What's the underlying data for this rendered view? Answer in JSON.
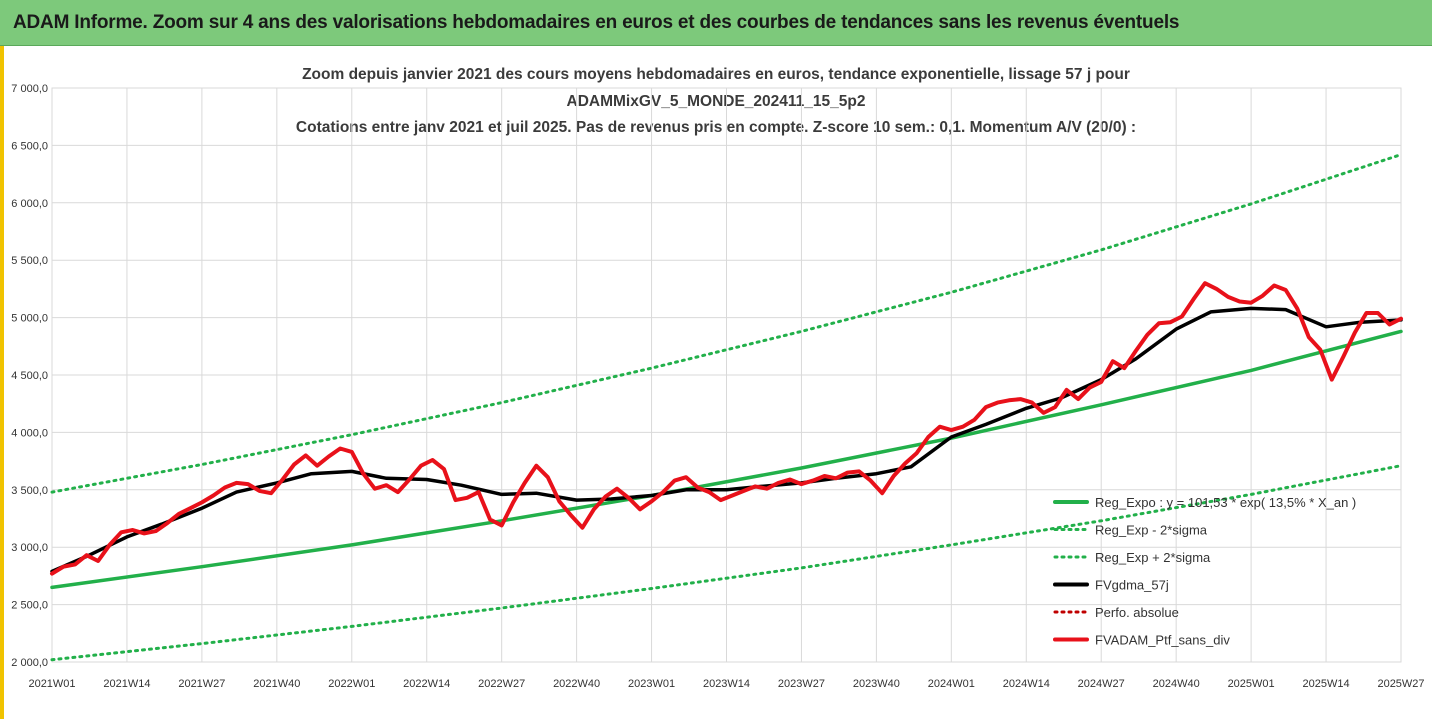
{
  "banner": {
    "title": "ADAM Informe. Zoom sur 4 ans des valorisations hebdomadaires en euros et des courbes de tendances sans les revenus éventuels"
  },
  "chart_data": {
    "type": "line",
    "title_lines": [
      "Zoom depuis janvier 2021 des cours moyens hebdomadaires  en euros, tendance exponentielle, lissage 57 j pour",
      "ADAMMixGV_5_MONDE_202411_15_5p2",
      "Cotations entre janv 2021 et juil 2025. Pas de revenus pris en compte. Z-score 10 sem.: 0,1. Momentum A/V (20/0) :"
    ],
    "ylim": [
      2000,
      7000
    ],
    "y_ticks": [
      "2 000,0",
      "2 500,0",
      "3 000,0",
      "3 500,0",
      "4 000,0",
      "4 500,0",
      "5 000,0",
      "5 500,0",
      "6 000,0",
      "6 500,0",
      "7 000,0"
    ],
    "x_ticks": [
      "2021W01",
      "2021W14",
      "2021W27",
      "2021W40",
      "2022W01",
      "2022W14",
      "2022W27",
      "2022W40",
      "2023W01",
      "2023W14",
      "2023W27",
      "2023W40",
      "2024W01",
      "2024W14",
      "2024W27",
      "2024W40",
      "2025W01",
      "2025W14",
      "2025W27"
    ],
    "grid": true,
    "legend_position": "bottom-right",
    "series": [
      {
        "name": "Reg_Expo : y = 101,53 * exp( 13,5% *  X_an )",
        "color": "#22b04a",
        "style": "solid",
        "points": [
          [
            "2021W01",
            2650
          ],
          [
            "2021W27",
            2830
          ],
          [
            "2022W01",
            3020
          ],
          [
            "2022W27",
            3230
          ],
          [
            "2023W01",
            3450
          ],
          [
            "2023W27",
            3690
          ],
          [
            "2024W01",
            3950
          ],
          [
            "2024W27",
            4240
          ],
          [
            "2025W01",
            4540
          ],
          [
            "2025W27",
            4880
          ]
        ]
      },
      {
        "name": "Reg_Exp - 2*sigma",
        "color": "#22b04a",
        "style": "dotted",
        "points": [
          [
            "2021W01",
            2020
          ],
          [
            "2021W27",
            2160
          ],
          [
            "2022W01",
            2310
          ],
          [
            "2022W27",
            2470
          ],
          [
            "2023W01",
            2640
          ],
          [
            "2023W27",
            2820
          ],
          [
            "2024W01",
            3020
          ],
          [
            "2024W27",
            3230
          ],
          [
            "2025W01",
            3460
          ],
          [
            "2025W27",
            3710
          ]
        ]
      },
      {
        "name": "Reg_Exp + 2*sigma",
        "color": "#22b04a",
        "style": "dotted",
        "points": [
          [
            "2021W01",
            3480
          ],
          [
            "2021W27",
            3720
          ],
          [
            "2022W01",
            3980
          ],
          [
            "2022W27",
            4260
          ],
          [
            "2023W01",
            4560
          ],
          [
            "2023W27",
            4880
          ],
          [
            "2024W01",
            5220
          ],
          [
            "2024W27",
            5590
          ],
          [
            "2025W01",
            5990
          ],
          [
            "2025W27",
            6420
          ]
        ]
      },
      {
        "name": "FVgdma_57j",
        "color": "#000000",
        "style": "solid",
        "points": [
          [
            "2021W01",
            2790
          ],
          [
            "2021W07",
            2920
          ],
          [
            "2021W14",
            3090
          ],
          [
            "2021W20",
            3200
          ],
          [
            "2021W27",
            3340
          ],
          [
            "2021W33",
            3480
          ],
          [
            "2021W40",
            3560
          ],
          [
            "2021W46",
            3640
          ],
          [
            "2022W01",
            3660
          ],
          [
            "2022W07",
            3600
          ],
          [
            "2022W14",
            3590
          ],
          [
            "2022W20",
            3540
          ],
          [
            "2022W27",
            3460
          ],
          [
            "2022W33",
            3470
          ],
          [
            "2022W40",
            3410
          ],
          [
            "2022W46",
            3420
          ],
          [
            "2023W01",
            3450
          ],
          [
            "2023W07",
            3500
          ],
          [
            "2023W14",
            3500
          ],
          [
            "2023W20",
            3530
          ],
          [
            "2023W27",
            3560
          ],
          [
            "2023W33",
            3600
          ],
          [
            "2023W40",
            3640
          ],
          [
            "2023W46",
            3700
          ],
          [
            "2024W01",
            3960
          ],
          [
            "2024W07",
            4070
          ],
          [
            "2024W14",
            4210
          ],
          [
            "2024W20",
            4300
          ],
          [
            "2024W27",
            4460
          ],
          [
            "2024W33",
            4640
          ],
          [
            "2024W40",
            4900
          ],
          [
            "2024W46",
            5050
          ],
          [
            "2025W01",
            5080
          ],
          [
            "2025W07",
            5070
          ],
          [
            "2025W14",
            4920
          ],
          [
            "2025W20",
            4960
          ],
          [
            "2025W27",
            4980
          ]
        ]
      },
      {
        "name": "Perfo. absolue",
        "color": "#c00000",
        "style": "dotted",
        "points": []
      },
      {
        "name": "FVADAM_Ptf_sans_div",
        "color": "#e8111a",
        "style": "solid",
        "points": [
          [
            "2021W01",
            2770
          ],
          [
            "2021W03",
            2830
          ],
          [
            "2021W05",
            2850
          ],
          [
            "2021W07",
            2930
          ],
          [
            "2021W09",
            2880
          ],
          [
            "2021W11",
            3020
          ],
          [
            "2021W13",
            3130
          ],
          [
            "2021W15",
            3150
          ],
          [
            "2021W17",
            3120
          ],
          [
            "2021W19",
            3140
          ],
          [
            "2021W21",
            3210
          ],
          [
            "2021W23",
            3290
          ],
          [
            "2021W25",
            3340
          ],
          [
            "2021W27",
            3390
          ],
          [
            "2021W29",
            3450
          ],
          [
            "2021W31",
            3520
          ],
          [
            "2021W33",
            3560
          ],
          [
            "2021W35",
            3550
          ],
          [
            "2021W37",
            3490
          ],
          [
            "2021W39",
            3470
          ],
          [
            "2021W41",
            3590
          ],
          [
            "2021W43",
            3720
          ],
          [
            "2021W45",
            3800
          ],
          [
            "2021W47",
            3710
          ],
          [
            "2021W49",
            3790
          ],
          [
            "2021W51",
            3860
          ],
          [
            "2022W01",
            3830
          ],
          [
            "2022W03",
            3640
          ],
          [
            "2022W05",
            3510
          ],
          [
            "2022W07",
            3540
          ],
          [
            "2022W09",
            3480
          ],
          [
            "2022W11",
            3590
          ],
          [
            "2022W13",
            3710
          ],
          [
            "2022W15",
            3760
          ],
          [
            "2022W17",
            3680
          ],
          [
            "2022W19",
            3410
          ],
          [
            "2022W21",
            3430
          ],
          [
            "2022W23",
            3480
          ],
          [
            "2022W25",
            3240
          ],
          [
            "2022W27",
            3190
          ],
          [
            "2022W29",
            3390
          ],
          [
            "2022W31",
            3560
          ],
          [
            "2022W33",
            3710
          ],
          [
            "2022W35",
            3610
          ],
          [
            "2022W37",
            3400
          ],
          [
            "2022W39",
            3280
          ],
          [
            "2022W41",
            3170
          ],
          [
            "2022W43",
            3330
          ],
          [
            "2022W45",
            3440
          ],
          [
            "2022W47",
            3510
          ],
          [
            "2022W49",
            3430
          ],
          [
            "2022W51",
            3330
          ],
          [
            "2023W01",
            3400
          ],
          [
            "2023W03",
            3480
          ],
          [
            "2023W05",
            3580
          ],
          [
            "2023W07",
            3610
          ],
          [
            "2023W09",
            3520
          ],
          [
            "2023W11",
            3480
          ],
          [
            "2023W13",
            3410
          ],
          [
            "2023W15",
            3450
          ],
          [
            "2023W17",
            3490
          ],
          [
            "2023W19",
            3530
          ],
          [
            "2023W21",
            3510
          ],
          [
            "2023W23",
            3560
          ],
          [
            "2023W25",
            3590
          ],
          [
            "2023W27",
            3550
          ],
          [
            "2023W29",
            3580
          ],
          [
            "2023W31",
            3620
          ],
          [
            "2023W33",
            3600
          ],
          [
            "2023W35",
            3650
          ],
          [
            "2023W37",
            3660
          ],
          [
            "2023W39",
            3580
          ],
          [
            "2023W41",
            3470
          ],
          [
            "2023W43",
            3620
          ],
          [
            "2023W45",
            3730
          ],
          [
            "2023W47",
            3820
          ],
          [
            "2023W49",
            3960
          ],
          [
            "2023W51",
            4050
          ],
          [
            "2024W01",
            4020
          ],
          [
            "2024W03",
            4050
          ],
          [
            "2024W05",
            4110
          ],
          [
            "2024W07",
            4220
          ],
          [
            "2024W09",
            4260
          ],
          [
            "2024W11",
            4280
          ],
          [
            "2024W13",
            4290
          ],
          [
            "2024W15",
            4260
          ],
          [
            "2024W17",
            4170
          ],
          [
            "2024W19",
            4220
          ],
          [
            "2024W21",
            4370
          ],
          [
            "2024W23",
            4290
          ],
          [
            "2024W25",
            4390
          ],
          [
            "2024W27",
            4440
          ],
          [
            "2024W29",
            4620
          ],
          [
            "2024W31",
            4560
          ],
          [
            "2024W33",
            4710
          ],
          [
            "2024W35",
            4850
          ],
          [
            "2024W37",
            4950
          ],
          [
            "2024W39",
            4960
          ],
          [
            "2024W41",
            5010
          ],
          [
            "2024W43",
            5160
          ],
          [
            "2024W45",
            5300
          ],
          [
            "2024W47",
            5250
          ],
          [
            "2024W49",
            5180
          ],
          [
            "2024W51",
            5140
          ],
          [
            "2025W01",
            5130
          ],
          [
            "2025W03",
            5190
          ],
          [
            "2025W05",
            5280
          ],
          [
            "2025W07",
            5240
          ],
          [
            "2025W09",
            5080
          ],
          [
            "2025W11",
            4830
          ],
          [
            "2025W13",
            4720
          ],
          [
            "2025W15",
            4460
          ],
          [
            "2025W17",
            4660
          ],
          [
            "2025W19",
            4870
          ],
          [
            "2025W21",
            5040
          ],
          [
            "2025W23",
            5040
          ],
          [
            "2025W25",
            4940
          ],
          [
            "2025W27",
            4990
          ]
        ]
      }
    ]
  }
}
